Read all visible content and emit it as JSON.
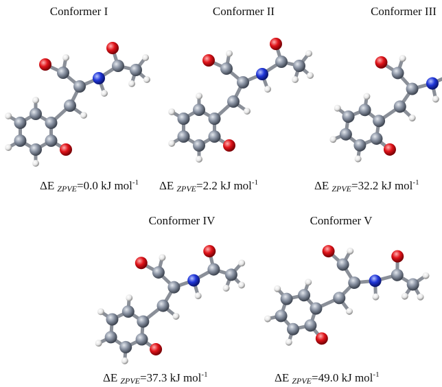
{
  "conformers": [
    {
      "name": "Conformer I",
      "delta": "ΔE",
      "sub": "ZPVE",
      "text": "=0.0 kJ mol",
      "sup": "-1"
    },
    {
      "name": "Conformer II",
      "delta": "ΔE",
      "sub": "ZPVE",
      "text": "=2.2 kJ mol",
      "sup": "-1"
    },
    {
      "name": "Conformer III",
      "delta": "ΔE",
      "sub": "ZPVE",
      "text": "=32.2 kJ mol",
      "sup": "-1"
    },
    {
      "name": "Conformer IV",
      "delta": "ΔE",
      "sub": "ZPVE",
      "text": "=37.3 kJ mol",
      "sup": "-1"
    },
    {
      "name": "Conformer V",
      "delta": "ΔE",
      "sub": "ZPVE",
      "text": "=49.0 kJ mol",
      "sup": "-1"
    }
  ]
}
